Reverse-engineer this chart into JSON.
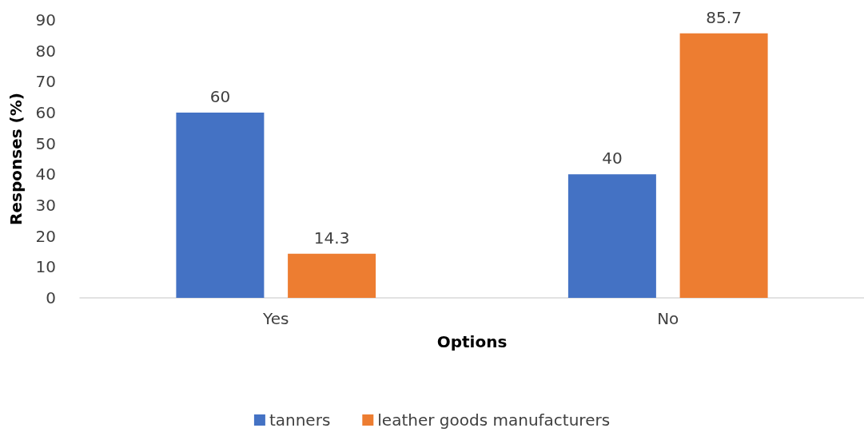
{
  "chart_data": {
    "type": "bar",
    "xlabel": "Options",
    "ylabel": "Responses (%)",
    "categories": [
      "Yes",
      "No"
    ],
    "series": [
      {
        "name": "tanners",
        "color": "#4472c4",
        "values": [
          60,
          40
        ]
      },
      {
        "name": "leather goods manufacturers",
        "color": "#ed7d31",
        "values": [
          14.3,
          85.7
        ]
      }
    ],
    "ylim": [
      0,
      90
    ],
    "yticks": [
      0,
      10,
      20,
      30,
      40,
      50,
      60,
      70,
      80,
      90
    ],
    "grid": false,
    "legend": "bottom",
    "data_labels": true
  }
}
